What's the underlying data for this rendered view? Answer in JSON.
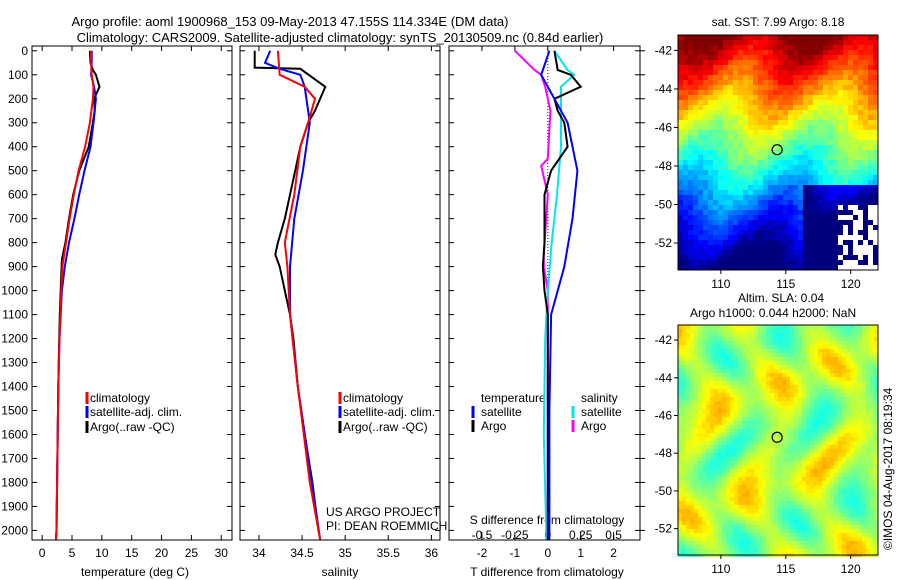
{
  "title": {
    "line1": "Argo profile: aoml 1900968_153 09-May-2013 47.155S 114.334E (DM data)",
    "line2": "Climatology: CARS2009. Satellite-adjusted climatology: synTS_20130509.nc (0.84d earlier)"
  },
  "colors": {
    "climatology": "#ff0000",
    "satellite": "#0000ff",
    "argo": "#000000",
    "s_satellite": "#00e5ee",
    "s_argo": "#ff00ff"
  },
  "chart_data": [
    {
      "type": "line",
      "name": "temperature-profile",
      "xlabel": "temperature (deg C)",
      "xlim": [
        -1.7,
        31.8
      ],
      "ylim": [
        2040,
        -20
      ],
      "xticks": [
        0,
        5,
        10,
        15,
        20,
        25,
        30
      ],
      "yticks": [
        0,
        100,
        200,
        300,
        400,
        500,
        600,
        700,
        800,
        900,
        1000,
        1100,
        1200,
        1300,
        1400,
        1500,
        1600,
        1700,
        1800,
        1900,
        2000
      ],
      "legend": [
        "climatology",
        "satellite-adj. clim.",
        "Argo(..raw -QC)"
      ],
      "series": [
        {
          "name": "climatology",
          "color": "#ff0000",
          "depth": [
            0,
            50,
            100,
            150,
            200,
            300,
            400,
            500,
            600,
            700,
            800,
            900,
            1000,
            1200,
            1400,
            1600,
            1800,
            2000,
            2040
          ],
          "values": [
            8.2,
            8.2,
            8.3,
            8.6,
            8.5,
            8.0,
            7.2,
            6.1,
            5.3,
            4.6,
            4.0,
            3.4,
            3.2,
            2.9,
            2.7,
            2.6,
            2.5,
            2.4,
            2.3
          ]
        },
        {
          "name": "satellite-adj. clim.",
          "color": "#0000ff",
          "depth": [
            0,
            50,
            100,
            150,
            200,
            300,
            400,
            500,
            600,
            700,
            800,
            900,
            1000,
            1200,
            1400,
            1600,
            1800,
            2000,
            2040
          ],
          "values": [
            8.3,
            8.3,
            8.2,
            8.7,
            9.0,
            8.6,
            8.1,
            7.1,
            6.2,
            5.4,
            4.5,
            3.8,
            3.3,
            2.9,
            2.7,
            2.6,
            2.5,
            2.4,
            2.3
          ]
        },
        {
          "name": "Argo(..raw -QC)",
          "color": "#000000",
          "depth": [
            0,
            50,
            80,
            100,
            150,
            200,
            250,
            300,
            400,
            500,
            600,
            700,
            800,
            870,
            900,
            1000,
            1100,
            1200,
            1400,
            1600,
            1800,
            2000,
            2040
          ],
          "values": [
            8.0,
            8.1,
            8.5,
            9.0,
            9.6,
            8.7,
            8.8,
            8.5,
            7.8,
            6.2,
            5.2,
            4.5,
            3.9,
            3.3,
            3.25,
            3.1,
            2.95,
            2.85,
            2.7,
            2.6,
            2.5,
            2.4,
            2.3
          ]
        }
      ]
    },
    {
      "type": "line",
      "name": "salinity-profile",
      "xlabel": "salinity",
      "xlim": [
        33.78,
        36.1
      ],
      "ylim": [
        2040,
        -20
      ],
      "xticks": [
        34,
        34.5,
        35,
        35.5,
        36
      ],
      "xticklabels": [
        "34",
        "34.5",
        "35",
        "35.5",
        "36"
      ],
      "legend": [
        "climatology",
        "satellite-adj. clim.",
        "Argo(..raw -QC)"
      ],
      "annotation": [
        "US ARGO PROJECT",
        "PI: DEAN ROEMMICH"
      ],
      "series": [
        {
          "name": "climatology",
          "color": "#ff0000",
          "depth": [
            0,
            100,
            150,
            200,
            300,
            400,
            600,
            800,
            900,
            1100,
            1400,
            1800,
            2040
          ],
          "values": [
            34.22,
            34.24,
            34.53,
            34.65,
            34.57,
            34.48,
            34.41,
            34.3,
            34.33,
            34.36,
            34.45,
            34.59,
            34.71
          ]
        },
        {
          "name": "satellite-adj. clim.",
          "color": "#0000ff",
          "depth": [
            0,
            50,
            75,
            100,
            150,
            300,
            500,
            700,
            900,
            1100,
            1400,
            2040
          ],
          "values": [
            34.13,
            34.07,
            34.24,
            34.48,
            34.53,
            34.59,
            34.51,
            34.41,
            34.36,
            34.36,
            34.45,
            34.71
          ]
        },
        {
          "name": "Argo(..raw -QC)",
          "color": "#000000",
          "depth": [
            0,
            70,
            75,
            150,
            250,
            300,
            400,
            500,
            600,
            700,
            800,
            850,
            900,
            1000,
            1100,
            1200,
            1400,
            1600,
            1800,
            2000
          ],
          "values": [
            33.95,
            33.95,
            34.48,
            34.77,
            34.65,
            34.57,
            34.48,
            34.42,
            34.36,
            34.3,
            34.22,
            34.19,
            34.24,
            34.3,
            34.36,
            34.4,
            34.45,
            34.53,
            34.62,
            34.69
          ]
        }
      ]
    },
    {
      "type": "line",
      "name": "difference-profile",
      "xlabel": "T difference from climatology",
      "x2label": "S difference from climatology",
      "xlim": [
        -3,
        2.8
      ],
      "ylim": [
        2040,
        -20
      ],
      "xticks": [
        -2,
        -1,
        0,
        1,
        2
      ],
      "x2ticks": [
        -0.5,
        -0.25,
        0,
        0.25,
        0.5
      ],
      "x2ticklabels": [
        "-0.5",
        "-0.25",
        "0",
        "0.25",
        "0.5"
      ],
      "legend_headers": [
        "temperature",
        "salinity"
      ],
      "legend": [
        "satellite",
        "Argo",
        "satellite",
        "Argo"
      ],
      "series": [
        {
          "name": "T satellite",
          "axis": "T",
          "color": "#0000ff",
          "depth": [
            0,
            100,
            150,
            300,
            500,
            700,
            900,
            1100,
            1500,
            2040
          ],
          "values": [
            0.05,
            -0.2,
            0.0,
            0.6,
            0.9,
            0.75,
            0.5,
            0.1,
            0.05,
            0.05
          ]
        },
        {
          "name": "T Argo",
          "axis": "T",
          "color": "#000000",
          "depth": [
            0,
            80,
            100,
            150,
            200,
            250,
            300,
            400,
            500,
            600,
            800,
            900,
            1000,
            1100,
            1500,
            2040
          ],
          "values": [
            0.2,
            0.3,
            0.7,
            1.0,
            0.2,
            0.3,
            0.5,
            0.6,
            0.1,
            -0.1,
            -0.1,
            -0.15,
            -0.1,
            0,
            0,
            0
          ]
        },
        {
          "name": "S satellite",
          "axis": "S",
          "color": "#00e5ee",
          "depth": [
            0,
            80,
            100,
            150,
            200,
            400,
            600,
            800,
            1000,
            1200,
            1600,
            2040
          ],
          "values": [
            0.05,
            0.15,
            0.2,
            0.1,
            0.1,
            0.1,
            0.07,
            0.03,
            0,
            -0.02,
            -0.03,
            -0.01
          ]
        },
        {
          "name": "S Argo",
          "axis": "S",
          "color": "#ff00ff",
          "depth": [
            0,
            80,
            100,
            150,
            250,
            450,
            480,
            600,
            850,
            900,
            1000,
            2040
          ],
          "values": [
            -0.25,
            -0.1,
            -0.05,
            -0.02,
            0.02,
            0,
            -0.05,
            0,
            -0.03,
            -0.03,
            0,
            0
          ]
        }
      ]
    }
  ],
  "maps": [
    {
      "name": "sst-map",
      "title": "sat. SST: 7.99 Argo: 8.18",
      "lat_ticks": [
        -42,
        -44,
        -46,
        -48,
        -50,
        -52
      ],
      "lon_ticks": [
        110,
        115,
        120
      ],
      "lon_range": [
        106.7,
        122.1
      ],
      "lat_range": [
        -41.2,
        -53.4
      ],
      "marker": [
        114.334,
        -47.155
      ]
    },
    {
      "name": "sla-map",
      "title1": "Altim. SLA: 0.04",
      "title2": "Argo h1000: 0.044 h2000: NaN",
      "lat_ticks": [
        -42,
        -44,
        -46,
        -48,
        -50,
        -52
      ],
      "lon_ticks": [
        110,
        115,
        120
      ],
      "lon_range": [
        106.7,
        122.1
      ],
      "lat_range": [
        -41.2,
        -53.4
      ],
      "marker": [
        114.334,
        -47.155
      ]
    }
  ],
  "copyright": "©IMOS 04-Aug-2017 08:19:34"
}
